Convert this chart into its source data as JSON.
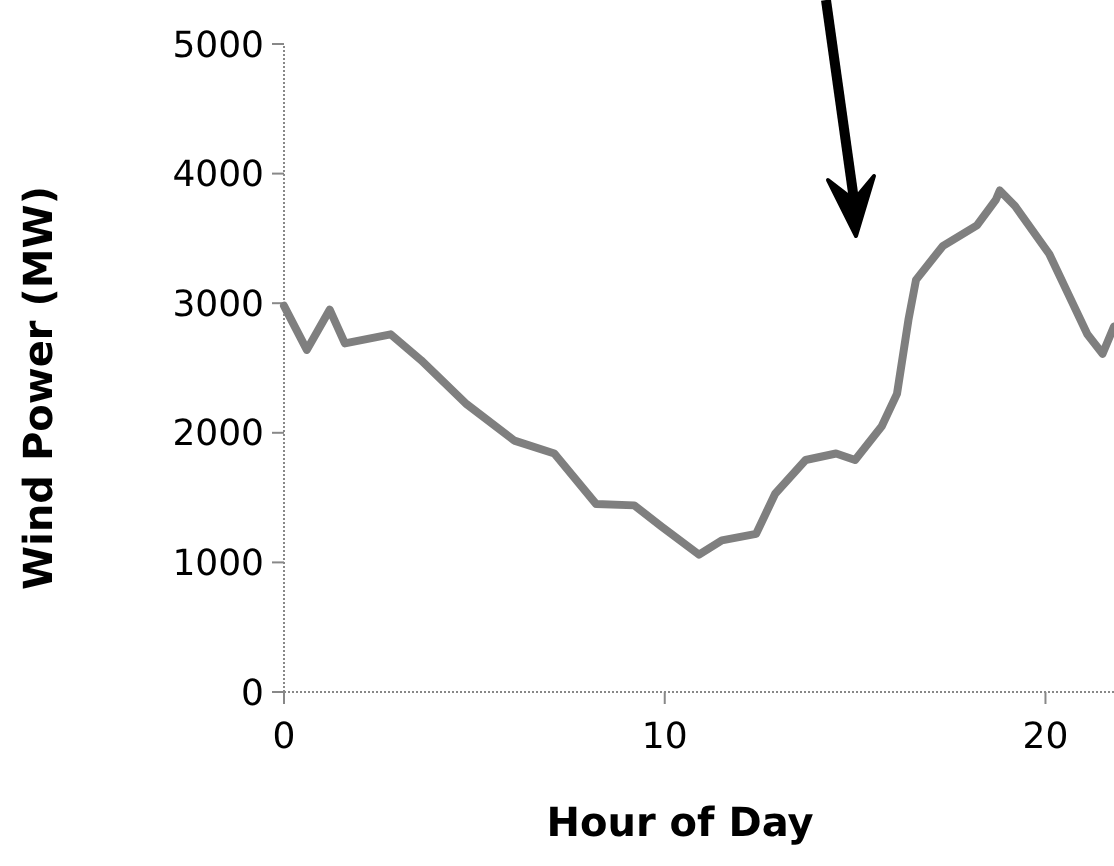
{
  "chart_data": {
    "type": "line",
    "xlabel": "Hour of Day",
    "ylabel": "Wind Power (MW)",
    "xlim": [
      0,
      21.8
    ],
    "xticks": [
      0,
      10,
      20
    ],
    "ylim": [
      0,
      5000
    ],
    "yticks": [
      0,
      1000,
      2000,
      3000,
      4000,
      5000
    ],
    "x": [
      0,
      0.6,
      1.2,
      1.6,
      2.8,
      3.6,
      4.8,
      6.05,
      7.1,
      8.2,
      9.2,
      9.9,
      10.9,
      11.5,
      12.4,
      12.9,
      13.7,
      14.5,
      15.0,
      15.7,
      16.1,
      16.4,
      16.6,
      17.3,
      18.2,
      18.7,
      18.8,
      19.2,
      20.1,
      20.6,
      21.1,
      21.5,
      21.8
    ],
    "series": [
      {
        "color": "#7f7f7f",
        "values": [
          2980,
          2640,
          2950,
          2690,
          2760,
          2560,
          2220,
          1940,
          1840,
          1450,
          1440,
          1280,
          1060,
          1170,
          1220,
          1530,
          1790,
          1840,
          1790,
          2050,
          2300,
          2870,
          3180,
          3440,
          3600,
          3800,
          3870,
          3750,
          3380,
          3070,
          2760,
          2610,
          2820
        ]
      }
    ]
  }
}
